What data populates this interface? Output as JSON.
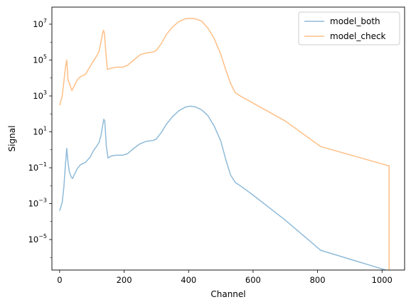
{
  "chart_data": {
    "type": "line",
    "xlabel": "Channel",
    "ylabel": "Signal",
    "xlim": [
      -24,
      1070
    ],
    "ylim_log10": [
      -6.7,
      7.95
    ],
    "yscale": "log",
    "grid": false,
    "legend_position": "top-right",
    "x_ticks": [
      0,
      200,
      400,
      600,
      800,
      1000
    ],
    "y_ticks": [
      {
        "exp": -5,
        "base": "10",
        "sup": "−5"
      },
      {
        "exp": -3,
        "base": "10",
        "sup": "−3"
      },
      {
        "exp": -1,
        "base": "10",
        "sup": "−1"
      },
      {
        "exp": 1,
        "base": "10",
        "sup": "1"
      },
      {
        "exp": 3,
        "base": "10",
        "sup": "3"
      },
      {
        "exp": 5,
        "base": "10",
        "sup": "5"
      },
      {
        "exp": 7,
        "base": "10",
        "sup": "7"
      }
    ],
    "series": [
      {
        "name": "model_both",
        "color": "#1f77b4",
        "alpha": 0.5,
        "points": [
          [
            0,
            0.0004
          ],
          [
            8,
            0.0012
          ],
          [
            13,
            0.008
          ],
          [
            18,
            0.15
          ],
          [
            22,
            1.2
          ],
          [
            26,
            0.2
          ],
          [
            30,
            0.06
          ],
          [
            36,
            0.03
          ],
          [
            40,
            0.025
          ],
          [
            45,
            0.04
          ],
          [
            55,
            0.09
          ],
          [
            65,
            0.15
          ],
          [
            80,
            0.2
          ],
          [
            95,
            0.4
          ],
          [
            105,
            0.9
          ],
          [
            115,
            1.6
          ],
          [
            122,
            2.5
          ],
          [
            128,
            6
          ],
          [
            133,
            20
          ],
          [
            137,
            50
          ],
          [
            140,
            40
          ],
          [
            145,
            1.5
          ],
          [
            150,
            0.35
          ],
          [
            160,
            0.45
          ],
          [
            175,
            0.5
          ],
          [
            195,
            0.5
          ],
          [
            210,
            0.6
          ],
          [
            230,
            1.2
          ],
          [
            250,
            2.2
          ],
          [
            270,
            3
          ],
          [
            290,
            3.3
          ],
          [
            300,
            4
          ],
          [
            315,
            9
          ],
          [
            330,
            25
          ],
          [
            350,
            70
          ],
          [
            370,
            150
          ],
          [
            390,
            240
          ],
          [
            405,
            270
          ],
          [
            420,
            250
          ],
          [
            440,
            170
          ],
          [
            460,
            80
          ],
          [
            480,
            20
          ],
          [
            500,
            3
          ],
          [
            515,
            0.3
          ],
          [
            530,
            0.04
          ],
          [
            545,
            0.015
          ],
          [
            560,
            0.01
          ],
          [
            600,
            0.003
          ],
          [
            700,
            0.00012
          ],
          [
            810,
            2.5e-06
          ],
          [
            1020,
            1.8e-07
          ],
          [
            1022,
            1.8e-07
          ],
          [
            1022,
            2e-07
          ],
          [
            1022,
            1e-08
          ]
        ]
      },
      {
        "name": "model_check",
        "color": "#ff7f0e",
        "alpha": 0.5,
        "points": [
          [
            0,
            300
          ],
          [
            8,
            1000
          ],
          [
            13,
            6000
          ],
          [
            18,
            40000
          ],
          [
            22,
            100000
          ],
          [
            26,
            8000
          ],
          [
            32,
            4000
          ],
          [
            38,
            2000
          ],
          [
            45,
            3500
          ],
          [
            55,
            8000
          ],
          [
            65,
            12000
          ],
          [
            80,
            16000
          ],
          [
            95,
            45000
          ],
          [
            105,
            90000
          ],
          [
            115,
            170000
          ],
          [
            122,
            300000
          ],
          [
            128,
            1000000
          ],
          [
            133,
            3000000
          ],
          [
            136,
            4500000
          ],
          [
            139,
            3000000
          ],
          [
            143,
            300000
          ],
          [
            148,
            30000
          ],
          [
            160,
            35000
          ],
          [
            175,
            40000
          ],
          [
            195,
            40000
          ],
          [
            210,
            50000
          ],
          [
            230,
            100000
          ],
          [
            250,
            200000
          ],
          [
            270,
            250000
          ],
          [
            290,
            280000
          ],
          [
            300,
            350000
          ],
          [
            315,
            800000
          ],
          [
            330,
            2500000
          ],
          [
            350,
            7000000
          ],
          [
            370,
            14000000
          ],
          [
            390,
            20000000
          ],
          [
            405,
            21000000
          ],
          [
            420,
            20000000
          ],
          [
            440,
            15000000
          ],
          [
            460,
            6000000
          ],
          [
            480,
            1500000
          ],
          [
            500,
            200000
          ],
          [
            515,
            30000
          ],
          [
            530,
            5000
          ],
          [
            545,
            1500
          ],
          [
            560,
            1000
          ],
          [
            600,
            400
          ],
          [
            700,
            40
          ],
          [
            810,
            1.5
          ],
          [
            1020,
            0.13
          ],
          [
            1022,
            0.13
          ],
          [
            1022,
            1e-08
          ]
        ]
      }
    ]
  }
}
